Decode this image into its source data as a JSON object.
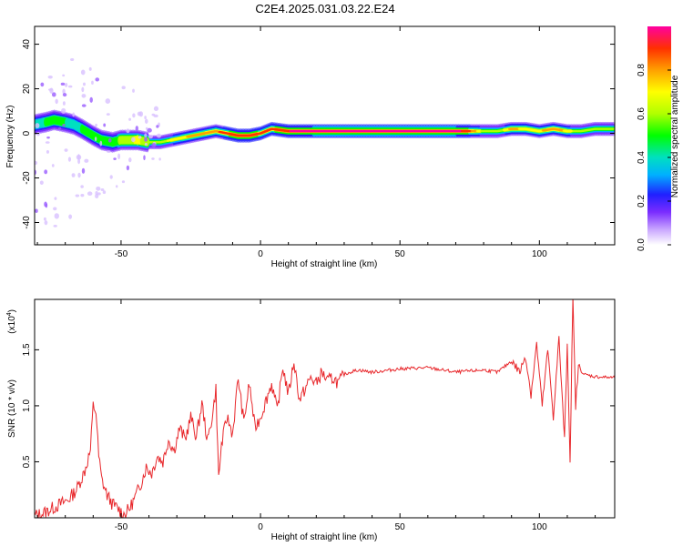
{
  "title": "C2E4.2025.031.03.22.E24",
  "chart_data": [
    {
      "type": "heatmap",
      "xlabel": "Height of straight line (km)",
      "ylabel": "Frequency (Hz)",
      "xlim": [
        -81,
        127
      ],
      "ylim": [
        -50,
        48
      ],
      "xticks": [
        -50,
        0,
        50,
        100
      ],
      "yticks": [
        -40,
        -20,
        0,
        20,
        40
      ],
      "colorbar": {
        "label": "Normalized spectral amplitude",
        "ticks": [
          0.0,
          0.2,
          0.4,
          0.6,
          0.8
        ],
        "range": [
          0,
          1
        ],
        "colors": [
          "#ffffff",
          "#c9a6ff",
          "#7a2cff",
          "#2020ff",
          "#00b0ff",
          "#00e0c0",
          "#00ff00",
          "#b0ff00",
          "#ffff00",
          "#ffa000",
          "#ff3000",
          "#ff00a0"
        ]
      },
      "ridge": {
        "x": [
          -81,
          -77,
          -74,
          -70,
          -67,
          -64,
          -60,
          -57,
          -53,
          -50,
          -47,
          -44,
          -40,
          -36,
          -32,
          -28,
          -24,
          -20,
          -16,
          -12,
          -8,
          -4,
          0,
          4,
          10,
          20,
          30,
          40,
          50,
          60,
          70,
          75,
          80,
          85,
          90,
          95,
          100,
          105,
          110,
          115,
          120,
          127
        ],
        "frequency": [
          4,
          5,
          6,
          5,
          4,
          2,
          -1,
          -3,
          -4,
          -3,
          -3,
          -3,
          -4,
          -4,
          -3,
          -2,
          -1,
          0,
          1,
          0,
          -1,
          -1,
          0,
          2,
          1,
          1,
          1,
          1,
          1,
          1,
          1,
          1,
          1,
          1,
          2,
          2,
          1,
          2,
          1,
          1,
          2,
          2
        ],
        "amplitude": [
          0.45,
          0.5,
          0.55,
          0.5,
          0.45,
          0.5,
          0.55,
          0.5,
          0.55,
          0.6,
          0.65,
          0.7,
          0.65,
          0.65,
          0.7,
          0.75,
          0.8,
          0.8,
          0.85,
          0.9,
          0.95,
          0.95,
          0.9,
          0.9,
          0.95,
          1.0,
          1.0,
          1.0,
          1.0,
          1.0,
          1.0,
          0.9,
          0.65,
          0.6,
          0.8,
          0.75,
          0.75,
          0.85,
          0.75,
          0.6,
          0.6,
          0.6
        ]
      }
    },
    {
      "type": "line",
      "xlabel": "Height of straight line (km)",
      "ylabel": "SNR (10 * v/v)",
      "yscale_label": "(x10",
      "yscale_exp": "4",
      "xlim": [
        -81,
        127
      ],
      "ylim": [
        0,
        1.95
      ],
      "xticks": [
        -50,
        0,
        50,
        100
      ],
      "yticks": [
        0.5,
        1.0,
        1.5
      ],
      "color": "#e8282c",
      "series": [
        {
          "x": [
            -81,
            -78,
            -75,
            -72,
            -69,
            -66,
            -63,
            -61,
            -60,
            -59,
            -58,
            -57,
            -55,
            -53,
            -51,
            -49,
            -47,
            -45,
            -43,
            -41,
            -39,
            -37,
            -35,
            -33,
            -31,
            -29,
            -27,
            -25,
            -23,
            -21,
            -19,
            -17,
            -16,
            -15,
            -14,
            -12,
            -10,
            -8,
            -6,
            -4,
            -2,
            0,
            2,
            4,
            6,
            8,
            10,
            12,
            14,
            16,
            18,
            20,
            22,
            24,
            26,
            28,
            30,
            32,
            35,
            40,
            50,
            60,
            70,
            80,
            85,
            90,
            93,
            95,
            97,
            99,
            101,
            103,
            105,
            107,
            109,
            110,
            111,
            112,
            113,
            114,
            116,
            120,
            127
          ],
          "y": [
            0.02,
            0.04,
            0.08,
            0.12,
            0.16,
            0.25,
            0.42,
            0.6,
            1.0,
            0.95,
            0.55,
            0.35,
            0.2,
            0.12,
            0.08,
            0.03,
            0.08,
            0.18,
            0.3,
            0.45,
            0.4,
            0.55,
            0.5,
            0.7,
            0.6,
            0.8,
            0.7,
            0.9,
            0.72,
            1.02,
            0.68,
            0.95,
            1.15,
            0.35,
            0.65,
            0.9,
            0.75,
            1.25,
            0.85,
            1.2,
            0.8,
            0.9,
            1.05,
            1.2,
            0.95,
            1.35,
            1.1,
            1.4,
            1.05,
            1.15,
            1.25,
            1.2,
            1.3,
            1.22,
            1.25,
            1.2,
            1.28,
            1.3,
            1.32,
            1.3,
            1.33,
            1.34,
            1.3,
            1.32,
            1.3,
            1.4,
            1.3,
            1.45,
            1.1,
            1.55,
            1.0,
            1.5,
            0.9,
            1.6,
            0.7,
            1.55,
            0.5,
            1.95,
            1.0,
            1.35,
            1.28,
            1.26,
            1.25
          ]
        }
      ]
    }
  ]
}
